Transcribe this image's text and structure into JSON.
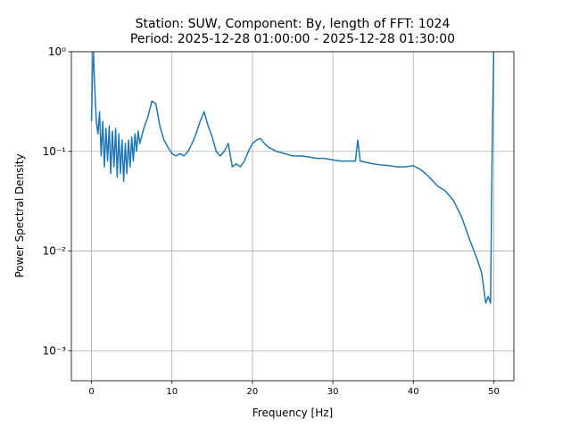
{
  "chart_data": {
    "type": "line",
    "title": "Station: SUW, Component: By, length of FFT: 1024",
    "subtitle": "Period: 2025-12-28 01:00:00 - 2025-12-28 01:30:00",
    "xlabel": "Frequency [Hz]",
    "ylabel": "Power Spectral Density",
    "yscale": "log",
    "grid": true,
    "xlim": [
      -2.5,
      52.5
    ],
    "xticks": [
      0,
      10,
      20,
      30,
      40,
      50
    ],
    "ylim": [
      0.0005,
      1
    ],
    "yticks": [
      {
        "value": 1,
        "label": "10⁰"
      },
      {
        "value": 0.1,
        "label": "10⁻¹"
      },
      {
        "value": 0.01,
        "label": "10⁻²"
      },
      {
        "value": 0.001,
        "label": "10⁻³"
      }
    ],
    "x": [
      0,
      0.2,
      0.4,
      0.6,
      0.8,
      1.0,
      1.2,
      1.4,
      1.6,
      1.8,
      2.0,
      2.2,
      2.4,
      2.6,
      2.8,
      3.0,
      3.2,
      3.4,
      3.6,
      3.8,
      4.0,
      4.2,
      4.4,
      4.6,
      4.8,
      5.0,
      5.2,
      5.4,
      5.6,
      5.8,
      6.0,
      6.5,
      7.0,
      7.5,
      8.0,
      8.5,
      9.0,
      9.5,
      10,
      10.5,
      11,
      11.5,
      12,
      12.5,
      13,
      13.5,
      14,
      14.5,
      15,
      15.5,
      16,
      16.5,
      17,
      17.5,
      18,
      18.5,
      19,
      19.5,
      20,
      20.5,
      21,
      21.5,
      22,
      23,
      24,
      25,
      26,
      27,
      28,
      29,
      30,
      31,
      32,
      32.8,
      33.1,
      33.4,
      34,
      35,
      36,
      37,
      38,
      39,
      40,
      41,
      42,
      43,
      44,
      45,
      46,
      47,
      48,
      48.5,
      49,
      49.3,
      49.6,
      49.8,
      50
    ],
    "series": [
      {
        "name": "PSD",
        "color": "#1f77b4",
        "values": [
          0.2,
          1.2,
          0.45,
          0.2,
          0.15,
          0.25,
          0.09,
          0.2,
          0.07,
          0.17,
          0.08,
          0.18,
          0.06,
          0.16,
          0.07,
          0.17,
          0.055,
          0.15,
          0.06,
          0.13,
          0.05,
          0.12,
          0.06,
          0.13,
          0.07,
          0.14,
          0.08,
          0.15,
          0.1,
          0.16,
          0.12,
          0.17,
          0.22,
          0.32,
          0.3,
          0.18,
          0.13,
          0.11,
          0.095,
          0.09,
          0.095,
          0.09,
          0.1,
          0.12,
          0.15,
          0.2,
          0.25,
          0.18,
          0.14,
          0.1,
          0.09,
          0.1,
          0.12,
          0.07,
          0.075,
          0.07,
          0.08,
          0.1,
          0.12,
          0.13,
          0.135,
          0.12,
          0.11,
          0.1,
          0.095,
          0.09,
          0.09,
          0.088,
          0.085,
          0.085,
          0.082,
          0.08,
          0.08,
          0.08,
          0.13,
          0.08,
          0.078,
          0.075,
          0.073,
          0.072,
          0.07,
          0.07,
          0.072,
          0.065,
          0.055,
          0.045,
          0.04,
          0.032,
          0.022,
          0.013,
          0.008,
          0.006,
          0.003,
          0.0035,
          0.003,
          0.1,
          1.2
        ]
      }
    ]
  }
}
